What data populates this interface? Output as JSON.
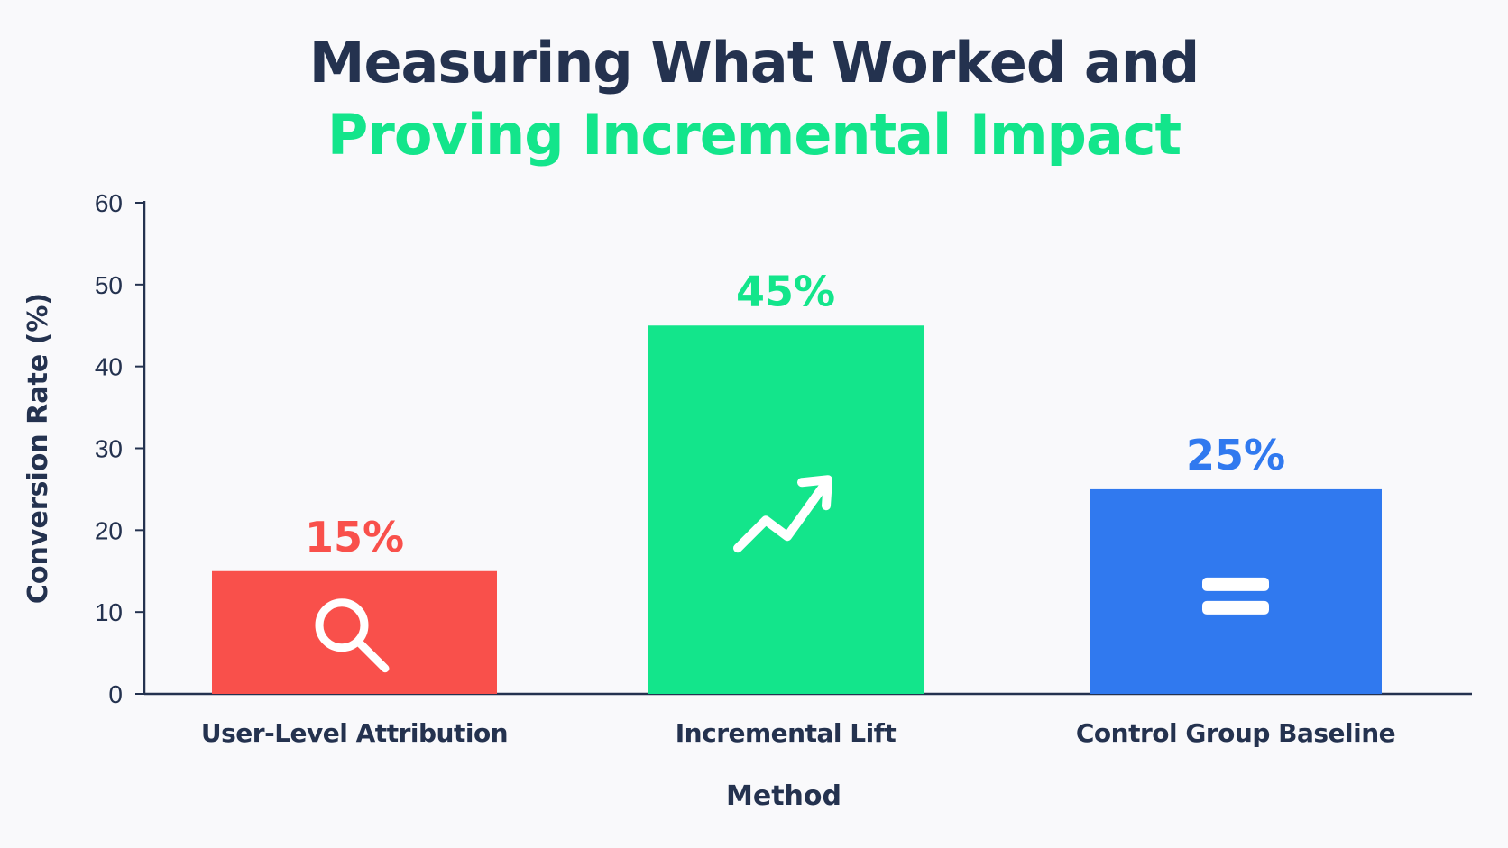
{
  "title": {
    "line1": "Measuring What Worked and",
    "line2": "Proving Incremental Impact"
  },
  "colors": {
    "title_primary": "#24324f",
    "title_accent": "#13e58b",
    "axis": "#24324f",
    "background": "#f9f9fb"
  },
  "chart_data": {
    "type": "bar",
    "categories": [
      "User-Level Attribution",
      "Incremental Lift",
      "Control Group Baseline"
    ],
    "values": [
      15,
      45,
      25
    ],
    "data_labels": [
      "15%",
      "45%",
      "25%"
    ],
    "bar_colors": [
      "#f9504b",
      "#13e58b",
      "#3079ef"
    ],
    "bar_icons": [
      "search-icon",
      "trending-up-icon",
      "equals-icon"
    ],
    "xlabel": "Method",
    "ylabel": "Conversion Rate (%)",
    "ylim": [
      0,
      60
    ],
    "yticks": [
      0,
      10,
      20,
      30,
      40,
      50,
      60
    ],
    "grid": false,
    "legend": "none"
  }
}
